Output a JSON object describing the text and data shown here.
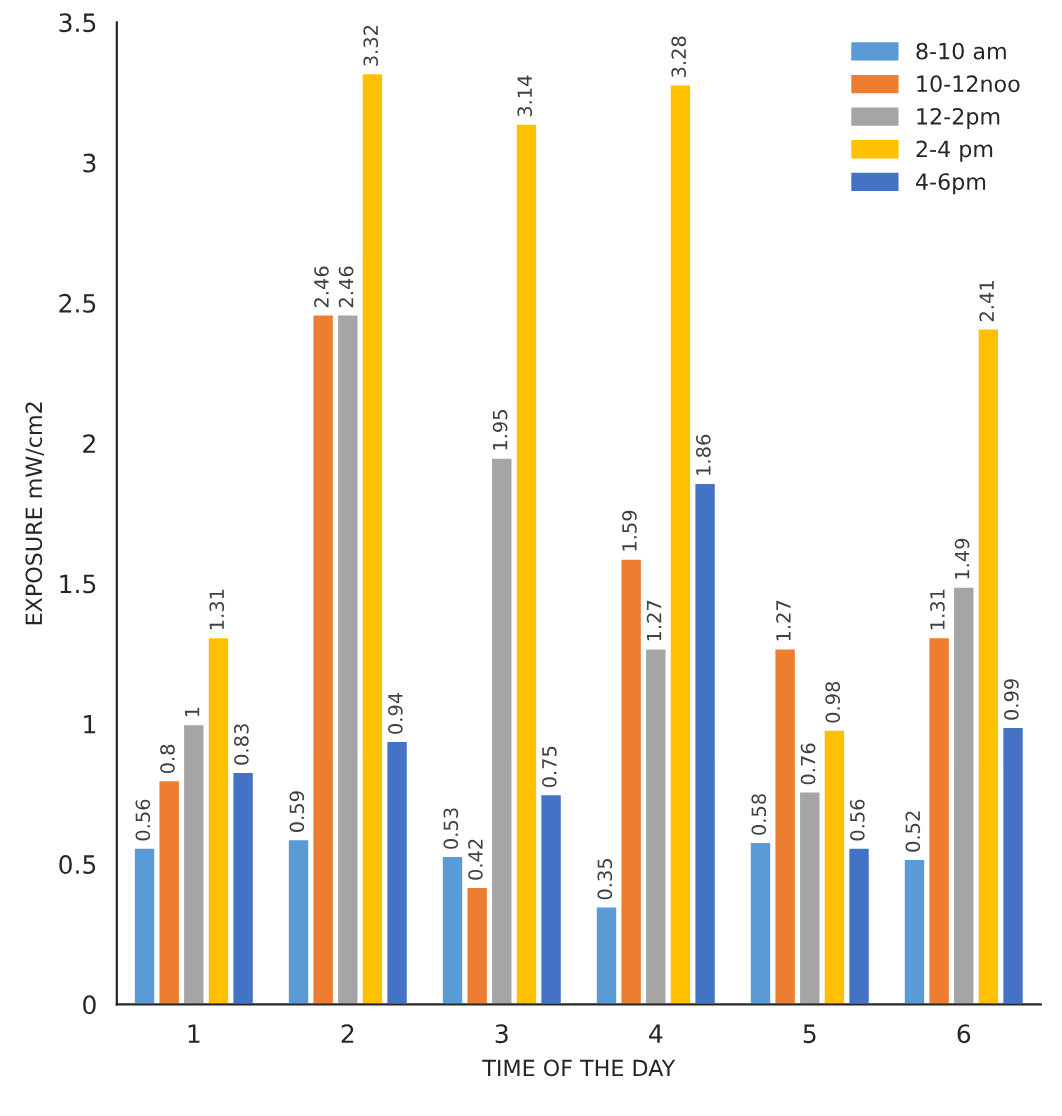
{
  "chart_data": {
    "type": "bar",
    "xlabel": "TIME OF THE DAY",
    "ylabel": "EXPOSURE mW/cm2",
    "categories": [
      "1",
      "2",
      "3",
      "4",
      "5",
      "6"
    ],
    "series": [
      {
        "name": "8-10 am",
        "color": "#5b9bd5",
        "values": [
          0.56,
          0.59,
          0.53,
          0.35,
          0.58,
          0.52
        ]
      },
      {
        "name": "10-12noo",
        "color": "#ed7d31",
        "values": [
          0.8,
          2.46,
          0.42,
          1.59,
          1.27,
          1.31
        ]
      },
      {
        "name": "12-2pm",
        "color": "#a5a5a5",
        "values": [
          1,
          2.46,
          1.95,
          1.27,
          0.76,
          1.49
        ]
      },
      {
        "name": "2-4 pm",
        "color": "#ffc000",
        "values": [
          1.31,
          3.32,
          3.14,
          3.28,
          0.98,
          2.41
        ]
      },
      {
        "name": "4-6pm",
        "color": "#4472c4",
        "values": [
          0.83,
          0.94,
          0.75,
          1.86,
          0.56,
          0.99
        ]
      }
    ],
    "ylim": [
      0,
      3.5
    ],
    "yticks": [
      0,
      0.5,
      1,
      1.5,
      2,
      2.5,
      3,
      3.5
    ],
    "data_labels": true,
    "legend": "top right",
    "grid": false
  }
}
